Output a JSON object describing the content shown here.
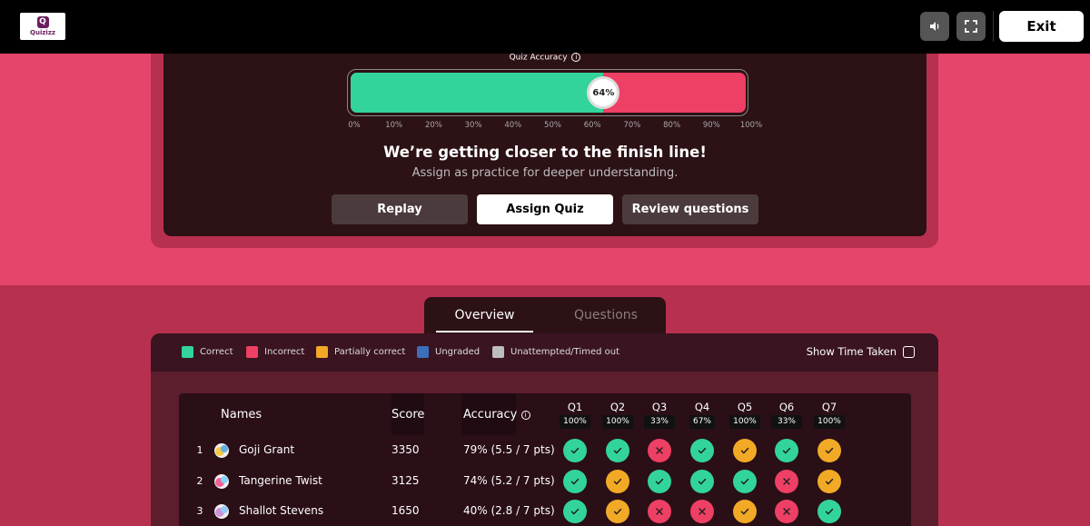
{
  "colors": {
    "correct": "#32d49b",
    "incorrect": "#ee3f64",
    "partial": "#f2a926",
    "ungraded": "#3b6fbd",
    "unattempted": "#bdbdbd"
  },
  "topbar": {
    "logo_text": "Quizizz",
    "logo_letter": "Q",
    "exit_label": "Exit",
    "volume_icon": "volume-icon",
    "fullscreen_icon": "fullscreen-icon"
  },
  "summary": {
    "accuracy_label": "Quiz Accuracy",
    "accuracy_value": 64,
    "accuracy_text": "64%",
    "ticks": [
      "0%",
      "10%",
      "20%",
      "30%",
      "40%",
      "50%",
      "60%",
      "70%",
      "80%",
      "90%",
      "100%"
    ],
    "headline": "We’re getting closer to the finish line!",
    "subline": "Assign as practice for deeper understanding.",
    "buttons": {
      "replay": "Replay",
      "assign": "Assign Quiz",
      "review": "Review questions"
    }
  },
  "tabs": {
    "overview": "Overview",
    "questions": "Questions"
  },
  "legend": {
    "correct": "Correct",
    "incorrect": "Incorrect",
    "partial": "Partially correct",
    "ungraded": "Ungraded",
    "unattempted": "Unattempted/Timed out",
    "show_time": "Show Time Taken"
  },
  "table": {
    "headers": {
      "names": "Names",
      "score": "Score",
      "accuracy": "Accuracy"
    },
    "questions": [
      {
        "label": "Q1",
        "pct": "100%"
      },
      {
        "label": "Q2",
        "pct": "100%"
      },
      {
        "label": "Q3",
        "pct": "33%"
      },
      {
        "label": "Q4",
        "pct": "67%"
      },
      {
        "label": "Q5",
        "pct": "100%"
      },
      {
        "label": "Q6",
        "pct": "33%"
      },
      {
        "label": "Q7",
        "pct": "100%"
      }
    ],
    "rows": [
      {
        "rank": "1",
        "name": "Goji Grant",
        "score": "3350",
        "accuracy": "79% (5.5 / 7 pts)",
        "marks": [
          "correct",
          "correct",
          "incorrect",
          "correct",
          "partial",
          "correct",
          "partial"
        ]
      },
      {
        "rank": "2",
        "name": "Tangerine Twist",
        "score": "3125",
        "accuracy": "74% (5.2 / 7 pts)",
        "marks": [
          "correct",
          "partial",
          "correct",
          "correct",
          "correct",
          "incorrect",
          "partial"
        ]
      },
      {
        "rank": "3",
        "name": "Shallot Stevens",
        "score": "1650",
        "accuracy": "40% (2.8 / 7 pts)",
        "marks": [
          "correct",
          "partial",
          "incorrect",
          "incorrect",
          "partial",
          "incorrect",
          "correct"
        ]
      }
    ]
  }
}
